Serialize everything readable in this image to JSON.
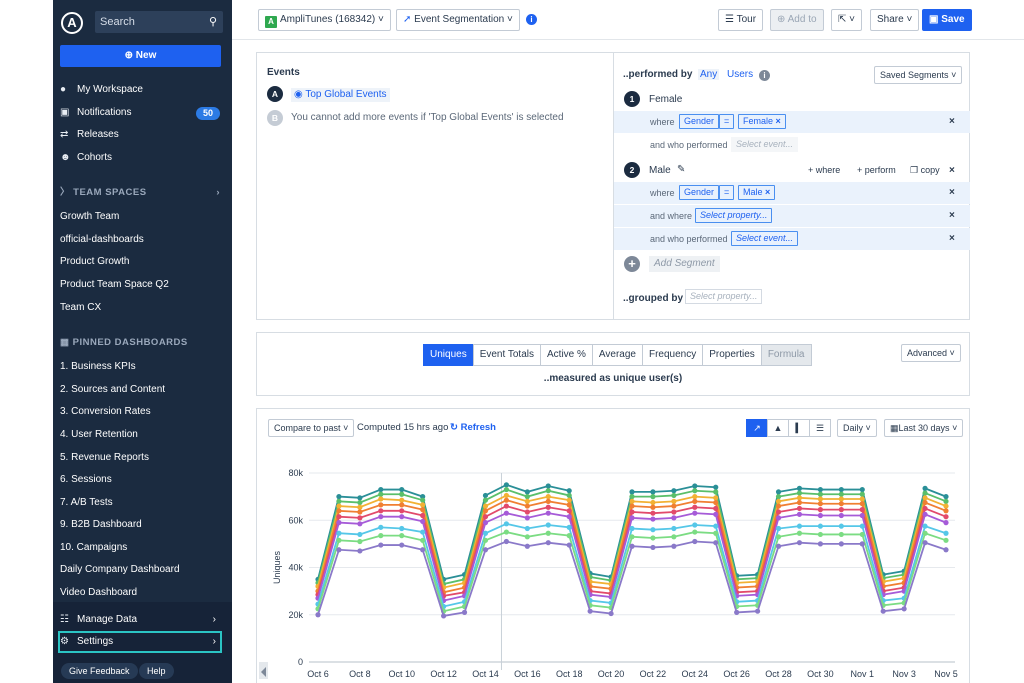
{
  "sidebar": {
    "logo": "A",
    "search_label": "Search",
    "new_label": "New",
    "nav": [
      {
        "label": "My Workspace",
        "icon": "person-icon"
      },
      {
        "label": "Notifications",
        "icon": "inbox-icon",
        "badge": "50"
      },
      {
        "label": "Releases",
        "icon": "releases-icon"
      },
      {
        "label": "Cohorts",
        "icon": "people-icon"
      }
    ],
    "team_spaces_label": "TEAM SPACES",
    "team_spaces": [
      "Growth Team",
      "official-dashboards",
      "Product Growth",
      "Product Team Space Q2",
      "Team CX"
    ],
    "pinned_label": "PINNED DASHBOARDS",
    "pinned": [
      "1. Business KPIs",
      "2. Sources and Content",
      "3. Conversion Rates",
      "4. User Retention",
      "5. Revenue Reports",
      "6. Sessions",
      "7. A/B Tests",
      "9. B2B Dashboard",
      "10. Campaigns",
      "Daily Company Dashboard",
      "Video Dashboard"
    ],
    "manage_data": "Manage Data",
    "settings": "Settings",
    "feedback": "Give Feedback",
    "help": "Help"
  },
  "topbar": {
    "project_chip": "A",
    "project": "AmpliTunes (168342)",
    "chart_type": "Event Segmentation",
    "tour": "Tour",
    "add_to": "Add to",
    "share": "Share",
    "save": "Save"
  },
  "events": {
    "title": "Events",
    "event_a_letter": "A",
    "event_a": "Top Global Events",
    "event_b_letter": "B",
    "event_b_note": "You cannot add more events if 'Top Global Events' is selected"
  },
  "segments": {
    "performed_by": "..performed by",
    "any": "Any",
    "users": "Users",
    "saved_segments": "Saved Segments",
    "seg1_num": "1",
    "seg1_name": "Female",
    "seg2_num": "2",
    "seg2_name": "Male",
    "where": "where",
    "and_who_performed": "and who performed",
    "and_where": "and where",
    "gender": "Gender",
    "equals": "=",
    "female_val": "Female",
    "male_val": "Male",
    "select_event": "Select event...",
    "select_property": "Select property...",
    "plus_where": "+ where",
    "plus_perform": "+ perform",
    "copy": "copy",
    "add_segment": "Add Segment",
    "grouped_by": "..grouped by"
  },
  "measure": {
    "tabs": [
      "Uniques",
      "Event Totals",
      "Active %",
      "Average",
      "Frequency",
      "Properties",
      "Formula"
    ],
    "caption": "..measured as unique user(s)",
    "advanced": "Advanced"
  },
  "chart_controls": {
    "compare": "Compare to past",
    "computed": "Computed 15 hrs ago",
    "refresh": "Refresh",
    "interval": "Daily",
    "range": "Last 30 days"
  },
  "chart_data": {
    "type": "line",
    "ylabel": "Uniques",
    "ylim": [
      0,
      80000
    ],
    "yticks": [
      "0",
      "20k",
      "40k",
      "60k",
      "80k"
    ],
    "xticks": [
      "Oct 6",
      "Oct 8",
      "Oct 10",
      "Oct 12",
      "Oct 14",
      "Oct 16",
      "Oct 18",
      "Oct 20",
      "Oct 22",
      "Oct 24",
      "Oct 26",
      "Oct 28",
      "Oct 30",
      "Nov 1",
      "Nov 3",
      "Nov 5"
    ],
    "x": [
      "Oct 6",
      "Oct 7",
      "Oct 8",
      "Oct 9",
      "Oct 10",
      "Oct 11",
      "Oct 12",
      "Oct 13",
      "Oct 14",
      "Oct 15",
      "Oct 16",
      "Oct 17",
      "Oct 18",
      "Oct 19",
      "Oct 20",
      "Oct 21",
      "Oct 22",
      "Oct 23",
      "Oct 24",
      "Oct 25",
      "Oct 26",
      "Oct 27",
      "Oct 28",
      "Oct 29",
      "Oct 30",
      "Oct 31",
      "Nov 1",
      "Nov 2",
      "Nov 3",
      "Nov 4",
      "Nov 5"
    ],
    "series": [
      {
        "color": "#2a8f97",
        "values": [
          35000,
          70000,
          69500,
          73000,
          73000,
          70000,
          35000,
          37000,
          70500,
          75000,
          72000,
          74500,
          72500,
          37500,
          36000,
          72000,
          72000,
          72500,
          74500,
          74000,
          36500,
          37000,
          72000,
          73500,
          73000,
          73000,
          73000,
          37000,
          38500,
          73500,
          70000
        ]
      },
      {
        "color": "#5abf6a",
        "values": [
          33500,
          68000,
          67500,
          71000,
          71000,
          68500,
          33000,
          35000,
          68500,
          73000,
          70000,
          72500,
          70500,
          36000,
          34500,
          70000,
          70000,
          70500,
          72500,
          72000,
          35000,
          35500,
          70000,
          71500,
          71000,
          71000,
          71000,
          35500,
          37000,
          71500,
          68000
        ]
      },
      {
        "color": "#f2b134",
        "values": [
          32000,
          66000,
          65500,
          69000,
          68500,
          66500,
          31500,
          33500,
          66000,
          70500,
          68000,
          70000,
          68500,
          34000,
          33000,
          68000,
          67500,
          68000,
          70000,
          69500,
          33500,
          34000,
          68000,
          69500,
          69000,
          69000,
          69000,
          34000,
          35500,
          69500,
          66000
        ]
      },
      {
        "color": "#f07f32",
        "values": [
          30000,
          64000,
          63500,
          66500,
          66500,
          64500,
          29500,
          31500,
          64000,
          68500,
          66000,
          68000,
          66500,
          32000,
          31000,
          66000,
          65500,
          66000,
          68000,
          67500,
          31500,
          32000,
          66000,
          67500,
          67000,
          67000,
          67000,
          32000,
          33500,
          67500,
          64000
        ]
      },
      {
        "color": "#e24a6b",
        "values": [
          28500,
          61500,
          61000,
          64000,
          64000,
          62000,
          28000,
          29500,
          61500,
          66000,
          63500,
          65500,
          64000,
          30000,
          29000,
          63500,
          63000,
          63500,
          65500,
          65000,
          29500,
          30000,
          63500,
          65000,
          64500,
          64500,
          64500,
          30000,
          31500,
          65000,
          61500
        ]
      },
      {
        "color": "#a65bd8",
        "values": [
          27000,
          59000,
          58500,
          61500,
          61500,
          59500,
          26000,
          28000,
          59000,
          63000,
          61000,
          63000,
          61500,
          28500,
          27500,
          61000,
          60500,
          61000,
          63000,
          62500,
          28000,
          28500,
          61000,
          62500,
          62000,
          62000,
          62000,
          28500,
          30000,
          62500,
          59000
        ]
      },
      {
        "color": "#55c7e8",
        "values": [
          24500,
          54500,
          54000,
          57000,
          56500,
          55000,
          23500,
          25500,
          54500,
          58500,
          56500,
          58000,
          57000,
          26000,
          25000,
          56500,
          56000,
          56500,
          58000,
          57500,
          25500,
          26000,
          56500,
          57500,
          57500,
          57500,
          57500,
          26000,
          27000,
          57500,
          54500
        ]
      },
      {
        "color": "#7bdc83",
        "values": [
          22500,
          51500,
          51000,
          53500,
          53500,
          51500,
          21500,
          23500,
          51500,
          55000,
          53000,
          54500,
          53500,
          24000,
          23000,
          53000,
          52500,
          53000,
          55000,
          54500,
          23500,
          24000,
          53000,
          54500,
          54000,
          54000,
          54000,
          24000,
          25000,
          54500,
          51500
        ]
      },
      {
        "color": "#8a79c9",
        "values": [
          20000,
          47500,
          47000,
          49500,
          49500,
          47500,
          19500,
          21000,
          47500,
          51000,
          49000,
          50500,
          49500,
          21500,
          20500,
          49000,
          48500,
          49000,
          51000,
          50500,
          21000,
          21500,
          49000,
          50500,
          50000,
          50000,
          50000,
          21500,
          22500,
          50500,
          47500
        ]
      }
    ]
  }
}
